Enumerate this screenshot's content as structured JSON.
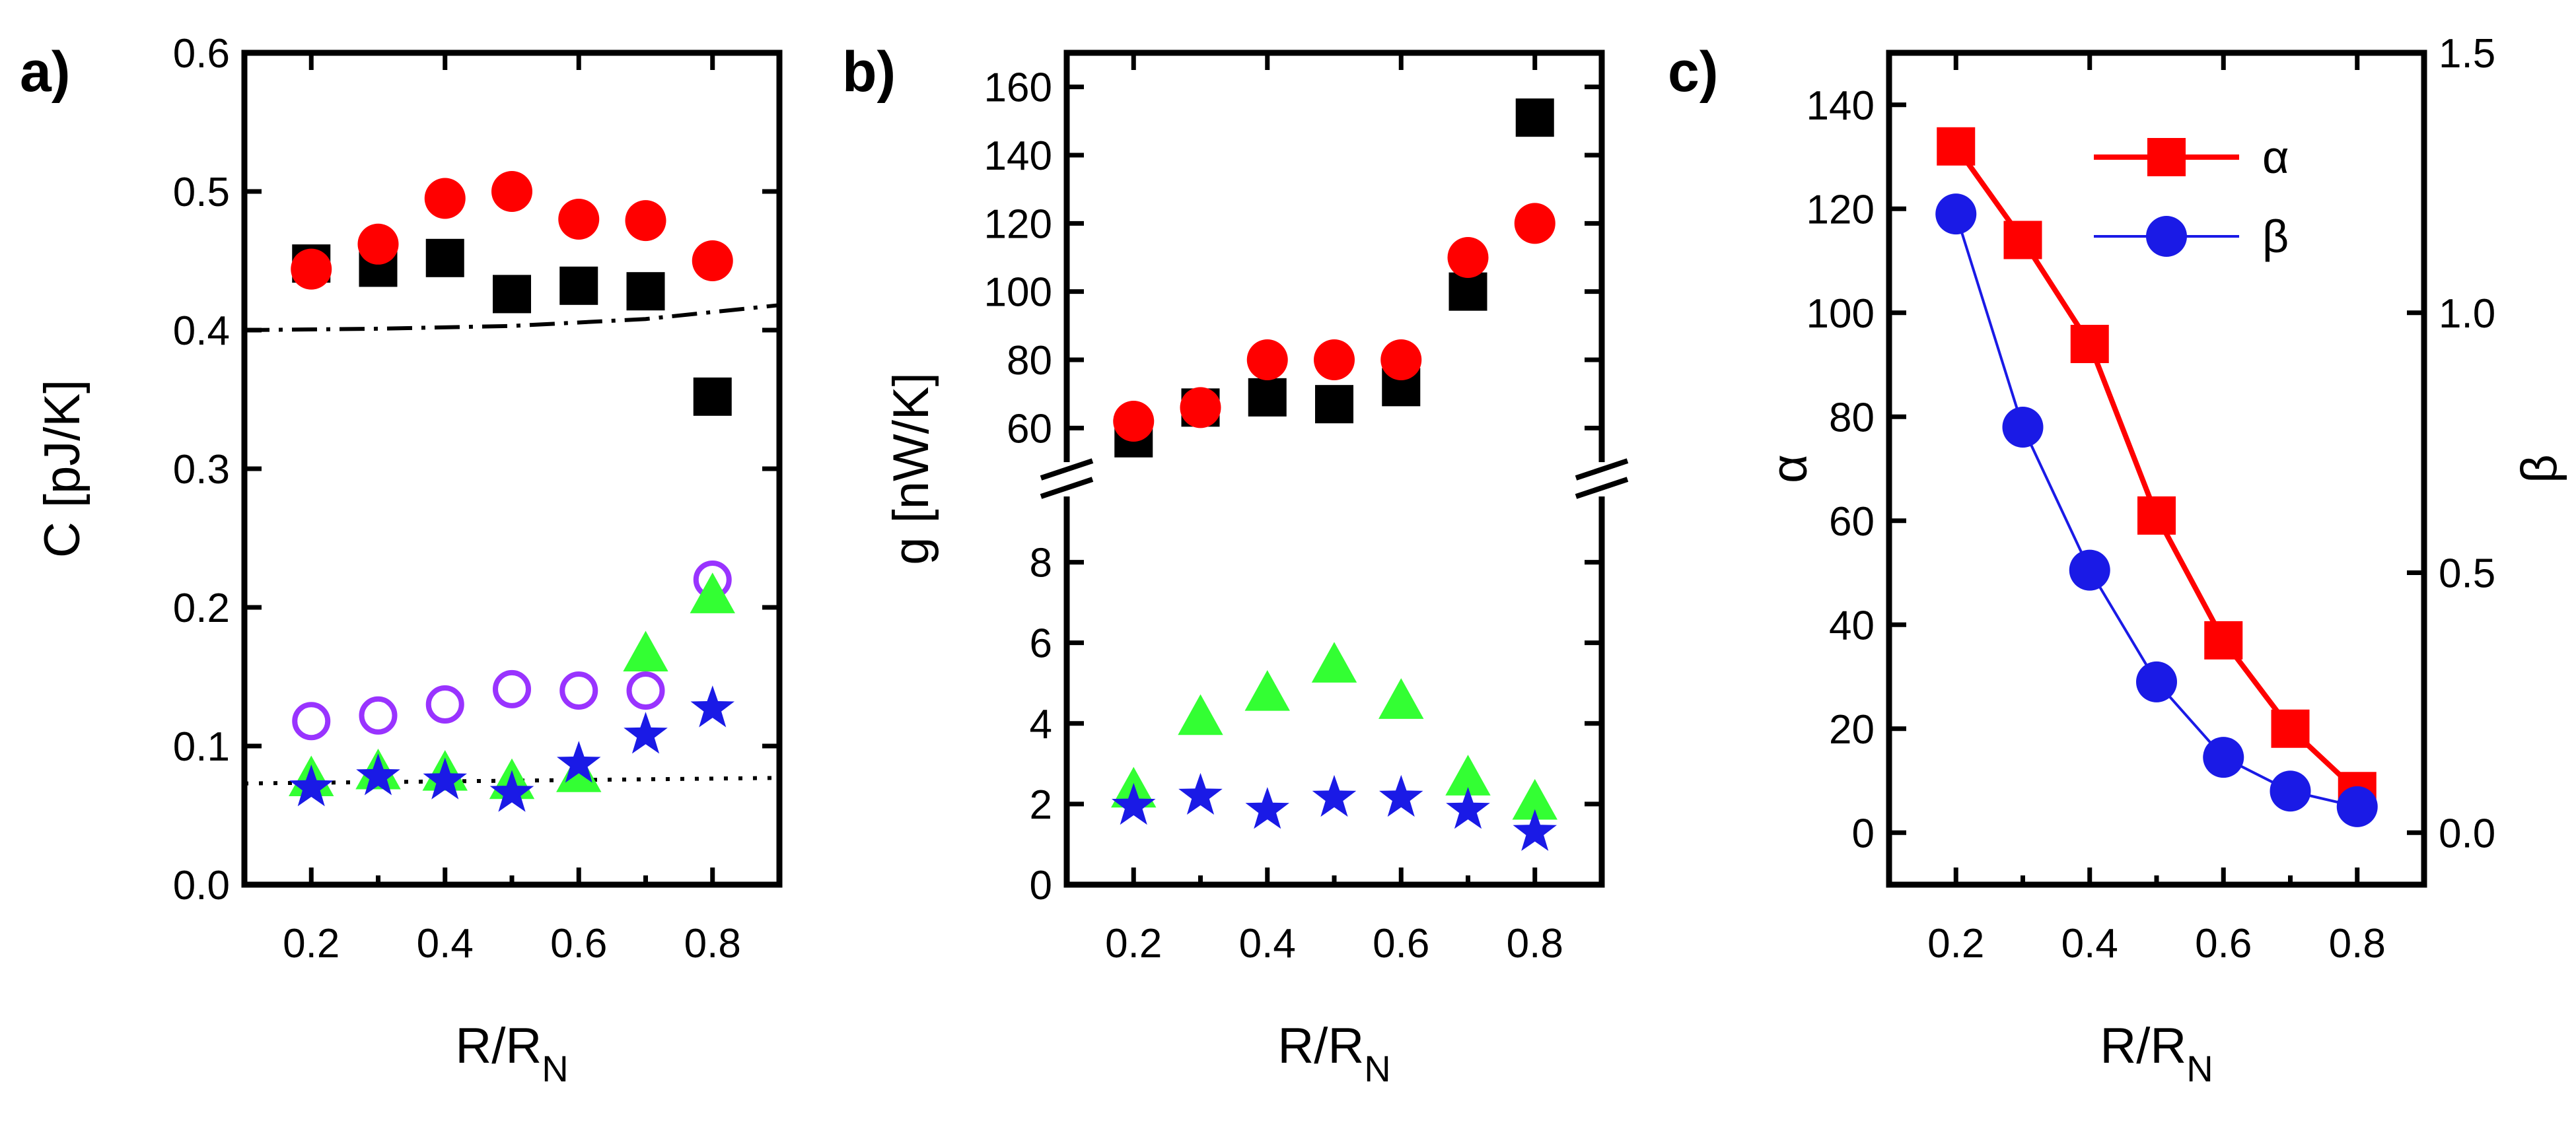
{
  "chart_data": [
    {
      "panel": "a)",
      "type": "scatter",
      "ylabel": "C [pJ/K]",
      "xlabel_main": "R/R",
      "xlabel_sub": "N",
      "xlim": [
        0.1,
        0.9
      ],
      "ylim": [
        0.0,
        0.6
      ],
      "xticks": [
        "0.2",
        "0.4",
        "0.6",
        "0.8"
      ],
      "yticks": [
        "0.0",
        "0.1",
        "0.2",
        "0.3",
        "0.4",
        "0.5",
        "0.6"
      ],
      "series": [
        {
          "marker": "square",
          "color": "#000000",
          "x": [
            0.2,
            0.3,
            0.4,
            0.5,
            0.6,
            0.7,
            0.8
          ],
          "y": [
            0.448,
            0.445,
            0.452,
            0.426,
            0.432,
            0.428,
            0.352
          ]
        },
        {
          "marker": "circle",
          "color": "#ff0000",
          "x": [
            0.2,
            0.3,
            0.4,
            0.5,
            0.6,
            0.7,
            0.8
          ],
          "y": [
            0.444,
            0.462,
            0.495,
            0.5,
            0.48,
            0.479,
            0.45
          ]
        },
        {
          "marker": "open-circle",
          "color": "#9933ff",
          "x": [
            0.2,
            0.3,
            0.4,
            0.5,
            0.6,
            0.7,
            0.8
          ],
          "y": [
            0.118,
            0.122,
            0.13,
            0.141,
            0.14,
            0.14,
            0.22
          ]
        },
        {
          "marker": "triangle",
          "color": "#33ff33",
          "x": [
            0.2,
            0.3,
            0.4,
            0.5,
            0.6,
            0.7,
            0.8
          ],
          "y": [
            0.075,
            0.08,
            0.079,
            0.073,
            0.078,
            0.165,
            0.207
          ]
        },
        {
          "marker": "star",
          "color": "#1a1ae6",
          "x": [
            0.2,
            0.3,
            0.4,
            0.5,
            0.6,
            0.7,
            0.8
          ],
          "y": [
            0.07,
            0.078,
            0.075,
            0.066,
            0.087,
            0.108,
            0.127
          ]
        }
      ],
      "curves": [
        {
          "style": "dashdot",
          "x": [
            0.1,
            0.3,
            0.5,
            0.7,
            0.9
          ],
          "y": [
            0.4,
            0.401,
            0.403,
            0.408,
            0.418
          ]
        },
        {
          "style": "dotted",
          "x": [
            0.1,
            0.5,
            0.9
          ],
          "y": [
            0.073,
            0.075,
            0.077
          ]
        }
      ]
    },
    {
      "panel": "b)",
      "type": "scatter",
      "ylabel": "g [nW/K]",
      "xlabel_main": "R/R",
      "xlabel_sub": "N",
      "xlim": [
        0.1,
        0.9
      ],
      "axis_break": true,
      "lower_ylim": [
        0,
        9.5
      ],
      "upper_ylim": [
        50,
        170
      ],
      "lower_yticks": [
        "0",
        "2",
        "4",
        "6",
        "8"
      ],
      "upper_yticks": [
        "60",
        "80",
        "100",
        "120",
        "140",
        "160"
      ],
      "xticks": [
        "0.2",
        "0.4",
        "0.6",
        "0.8"
      ],
      "series": [
        {
          "marker": "square",
          "color": "#000000",
          "segment": "upper",
          "x": [
            0.2,
            0.3,
            0.4,
            0.5,
            0.6,
            0.7,
            0.8
          ],
          "y": [
            57,
            66,
            69,
            67,
            72,
            100,
            151
          ]
        },
        {
          "marker": "circle",
          "color": "#ff0000",
          "segment": "upper",
          "x": [
            0.2,
            0.3,
            0.4,
            0.5,
            0.6,
            0.7,
            0.8
          ],
          "y": [
            62,
            66,
            80,
            80,
            80,
            110,
            120
          ]
        },
        {
          "marker": "triangle",
          "color": "#33ff33",
          "segment": "lower",
          "x": [
            0.2,
            0.3,
            0.4,
            0.5,
            0.6,
            0.7,
            0.8
          ],
          "y": [
            2.3,
            4.1,
            4.7,
            5.4,
            4.5,
            2.6,
            2.0
          ]
        },
        {
          "marker": "star",
          "color": "#1a1ae6",
          "segment": "lower",
          "x": [
            0.2,
            0.3,
            0.4,
            0.5,
            0.6,
            0.7,
            0.8
          ],
          "y": [
            1.95,
            2.2,
            1.85,
            2.15,
            2.15,
            1.85,
            1.3
          ]
        }
      ]
    },
    {
      "panel": "c)",
      "type": "line",
      "ylabel_left": "α",
      "ylabel_right": "β",
      "xlabel_main": "R/R",
      "xlabel_sub": "N",
      "xlim": [
        0.1,
        0.9
      ],
      "ylim_left": [
        -10,
        150
      ],
      "ylim_right": [
        -0.1,
        1.5
      ],
      "xticks": [
        "0.2",
        "0.4",
        "0.6",
        "0.8"
      ],
      "yticks_left": [
        "0",
        "20",
        "40",
        "60",
        "80",
        "100",
        "120",
        "140"
      ],
      "yticks_right": [
        "0.0",
        "0.5",
        "1.0",
        "1.5"
      ],
      "legend_position": "top-right",
      "series": [
        {
          "name": "α",
          "axis": "left",
          "marker": "square",
          "color": "#ff0000",
          "x": [
            0.2,
            0.3,
            0.4,
            0.5,
            0.6,
            0.7,
            0.8
          ],
          "y": [
            132,
            114,
            94,
            61,
            37,
            20,
            8
          ]
        },
        {
          "name": "β",
          "axis": "right",
          "marker": "circle",
          "color": "#1a1ae6",
          "x": [
            0.2,
            0.3,
            0.4,
            0.5,
            0.6,
            0.7,
            0.8
          ],
          "y": [
            1.19,
            0.78,
            0.505,
            0.29,
            0.145,
            0.08,
            0.05
          ]
        }
      ]
    }
  ]
}
